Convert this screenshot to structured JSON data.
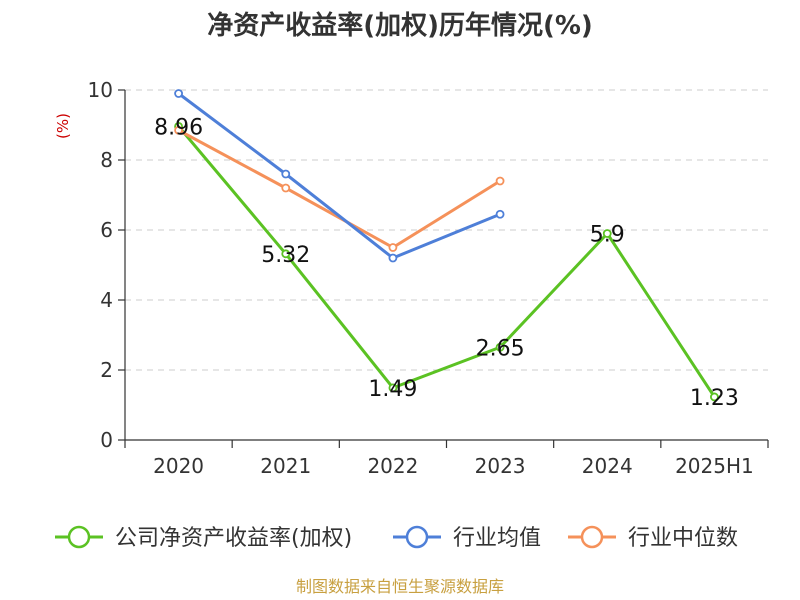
{
  "chart_data": {
    "type": "line",
    "title": "净资产收益率(加权)历年情况(%)",
    "ylabel": "(%)",
    "categories": [
      "2020",
      "2021",
      "2022",
      "2023",
      "2024",
      "2025H1"
    ],
    "ylim": [
      0,
      10
    ],
    "yticks": [
      "0",
      "2",
      "4",
      "6",
      "8",
      "10"
    ],
    "grid": true,
    "legend_position": "bottom",
    "series": [
      {
        "name": "公司净资产收益率(加权)",
        "color": "#5bc223",
        "values": [
          8.96,
          5.32,
          1.49,
          2.65,
          5.9,
          1.23
        ],
        "labels": [
          "8.96",
          "5.32",
          "1.49",
          "2.65",
          "5.9",
          "1.23"
        ]
      },
      {
        "name": "行业均值",
        "color": "#4e7fd8",
        "values": [
          9.9,
          7.6,
          5.2,
          6.45,
          null,
          null
        ]
      },
      {
        "name": "行业中位数",
        "color": "#f5915a",
        "values": [
          8.85,
          7.2,
          5.5,
          7.4,
          null,
          null
        ]
      }
    ]
  },
  "footer": {
    "source": "制图数据来自恒生聚源数据库"
  }
}
